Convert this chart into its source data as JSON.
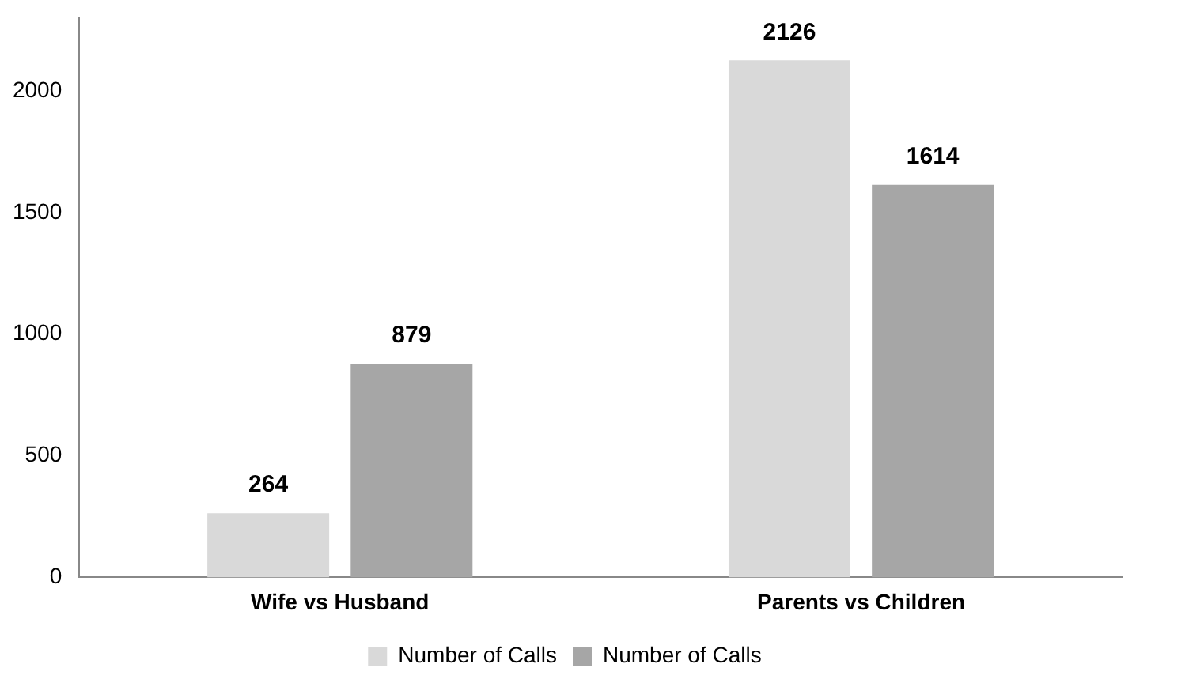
{
  "chart_data": {
    "type": "bar",
    "categories": [
      "Wife vs Husband",
      "Parents vs Children"
    ],
    "series": [
      {
        "name": "Number of Calls",
        "color": "#d9d9d9",
        "values": [
          264,
          2126
        ]
      },
      {
        "name": "Number of Calls",
        "color": "#a6a6a6",
        "values": [
          879,
          1614
        ]
      }
    ],
    "ylim": [
      0,
      2300
    ],
    "yticks": [
      0,
      500,
      1000,
      1500,
      2000
    ],
    "grid": false,
    "legend": "bottom",
    "data_labels": true
  }
}
